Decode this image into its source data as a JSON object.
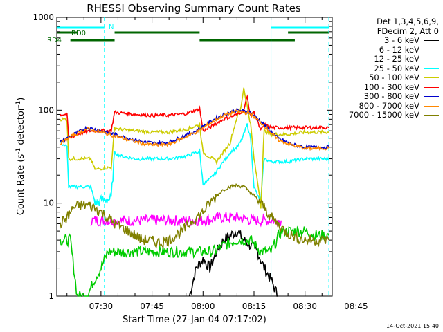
{
  "chart_data": {
    "type": "line",
    "title": "RHESSI Observing Summary Count Rates",
    "xlabel": "Start Time (27-Jan-04 07:17:02)",
    "ylabel_main": "Count Rate (s",
    "ylabel_sup": "-1",
    "ylabel_mid": " detector",
    "ylabel_sup2": "-1",
    "ylabel_end": ")",
    "y_scale": "log",
    "ylim": [
      1,
      1000
    ],
    "y_ticks": [
      "1",
      "10",
      "100",
      "1000"
    ],
    "x_ticks": [
      "07:30",
      "07:45",
      "08:00",
      "08:15",
      "08:30",
      "08:45"
    ],
    "xlim_minutes": [
      437,
      518
    ],
    "legend_header": [
      "Det 1,3,4,5,6,9,",
      "FDecim 2, Att 0"
    ],
    "series": [
      {
        "name": "3 - 6 keV",
        "color": "#000000",
        "x": [
          476,
          478,
          480,
          482,
          484,
          486,
          488,
          490,
          492,
          494,
          496,
          498,
          500,
          502
        ],
        "y": [
          1,
          2,
          2.5,
          2,
          3,
          4,
          4.5,
          5,
          4,
          3.5,
          3,
          2,
          1.5,
          1
        ]
      },
      {
        "name": "6 - 12 keV",
        "color": "#ff00ff",
        "x": [
          447,
          455,
          465,
          470,
          475,
          480,
          485,
          490,
          495,
          500,
          503
        ],
        "y": [
          6.5,
          6.5,
          6.5,
          6.5,
          6.5,
          6.5,
          7,
          7,
          6.5,
          6.5,
          6.5
        ]
      },
      {
        "name": "12 - 25 keV",
        "color": "#00cc00",
        "x": [
          438,
          440,
          441,
          443,
          446,
          448,
          450,
          452,
          455,
          460,
          465,
          470,
          475,
          480,
          483,
          486,
          490,
          494,
          497,
          500,
          503,
          507,
          510,
          513,
          517
        ],
        "y": [
          4,
          4,
          4,
          1,
          1,
          1.5,
          2,
          3,
          3,
          3,
          3,
          3,
          3,
          3,
          3,
          3.5,
          4,
          4,
          3,
          3,
          5,
          5,
          5,
          4.5,
          4.5
        ]
      },
      {
        "name": "25 - 50 keV",
        "color": "#00ffff",
        "x": [
          438,
          440,
          440.5,
          447,
          448,
          448.5,
          451,
          453,
          454,
          456,
          460,
          465,
          470,
          475,
          478,
          479,
          480,
          482,
          484,
          486,
          488,
          490,
          491,
          492,
          493,
          494,
          495,
          497,
          498,
          500,
          501,
          505,
          510,
          517
        ],
        "y": [
          45,
          40,
          15,
          15,
          11,
          10,
          11,
          11,
          35,
          32,
          30,
          30,
          30,
          32,
          35,
          36,
          16,
          18,
          22,
          28,
          35,
          40,
          45,
          55,
          70,
          50,
          15,
          10,
          30,
          28,
          28,
          28,
          30,
          30
        ]
      },
      {
        "name": "50 - 100 keV",
        "color": "#cccc00",
        "x": [
          438,
          440,
          440.5,
          447,
          448,
          448.5,
          451,
          453,
          454,
          456,
          460,
          465,
          470,
          475,
          478,
          479,
          480,
          484,
          488,
          490,
          491,
          492,
          493,
          494,
          495,
          497,
          498,
          500,
          501,
          505,
          510,
          517
        ],
        "y": [
          80,
          80,
          30,
          30,
          24,
          23,
          24,
          24,
          65,
          62,
          60,
          58,
          58,
          62,
          68,
          70,
          35,
          28,
          45,
          85,
          100,
          175,
          110,
          70,
          30,
          10,
          60,
          55,
          55,
          55,
          58,
          58
        ]
      },
      {
        "name": "100 - 300 keV",
        "color": "#ff0000",
        "x": [
          438,
          440,
          440.5,
          443,
          447,
          450,
          453,
          454,
          456,
          460,
          465,
          470,
          475,
          478,
          479,
          480,
          482,
          486,
          490,
          492,
          493,
          494,
          495,
          497,
          498,
          500,
          501,
          505,
          510,
          517
        ],
        "y": [
          90,
          90,
          50,
          55,
          60,
          60,
          60,
          95,
          93,
          90,
          88,
          88,
          92,
          100,
          105,
          60,
          65,
          80,
          90,
          100,
          140,
          85,
          95,
          60,
          70,
          65,
          65,
          65,
          65,
          65
        ]
      },
      {
        "name": "300 - 800 keV",
        "color": "#0000cc",
        "x": [
          438,
          442,
          446,
          450,
          454,
          458,
          462,
          466,
          470,
          474,
          478,
          482,
          486,
          490,
          494,
          498,
          502,
          506,
          510,
          514,
          517
        ],
        "y": [
          45,
          55,
          65,
          60,
          55,
          50,
          46,
          44,
          45,
          52,
          60,
          75,
          90,
          100,
          95,
          70,
          50,
          43,
          40,
          40,
          40
        ]
      },
      {
        "name": "800 - 7000 keV",
        "color": "#ff8800",
        "x": [
          438,
          442,
          446,
          450,
          454,
          458,
          462,
          466,
          470,
          474,
          478,
          482,
          486,
          490,
          494,
          498,
          502,
          506,
          510,
          514,
          517
        ],
        "y": [
          44,
          54,
          63,
          58,
          53,
          48,
          44,
          42,
          43,
          50,
          58,
          72,
          88,
          97,
          92,
          68,
          48,
          42,
          39,
          39,
          39
        ]
      },
      {
        "name": "7000 - 15000 keV",
        "color": "#808000",
        "x": [
          438,
          440,
          442,
          444,
          446,
          448,
          450,
          452,
          454,
          456,
          458,
          460,
          462,
          464,
          466,
          468,
          470,
          472,
          474,
          476,
          478,
          480,
          482,
          484,
          486,
          488,
          490,
          492,
          494,
          496,
          498,
          500,
          502,
          504,
          506,
          508,
          510,
          512,
          514,
          517
        ],
        "y": [
          6,
          7,
          9,
          9.5,
          9.5,
          9,
          8,
          7,
          6,
          5.5,
          5,
          4.5,
          4,
          4,
          3.8,
          3.8,
          4,
          4.5,
          5,
          6,
          7,
          8,
          10,
          12,
          14,
          15,
          15.5,
          15,
          13,
          11,
          9,
          7,
          6,
          5,
          4.5,
          4.2,
          4,
          4,
          4,
          4
        ]
      }
    ],
    "annotations": [
      {
        "label": "RD0",
        "color": "#006600"
      },
      {
        "label": "RD4",
        "color": "#006600"
      },
      {
        "label": "N",
        "color": "#00ffff"
      }
    ],
    "flag_bars": {
      "rd0": [
        [
          437,
          443
        ],
        [
          454,
          479
        ],
        [
          505,
          517
        ]
      ],
      "rd4": [
        [
          441,
          454
        ],
        [
          479,
          502
        ],
        [
          502,
          507
        ]
      ],
      "night": [
        [
          437,
          451
        ],
        [
          500,
          517
        ]
      ]
    },
    "vertical_lines_minutes": [
      451,
      500,
      517
    ],
    "grid": false,
    "legend_position": "right"
  },
  "footer": {
    "timestamp": "14-Oct-2021 15:40"
  }
}
